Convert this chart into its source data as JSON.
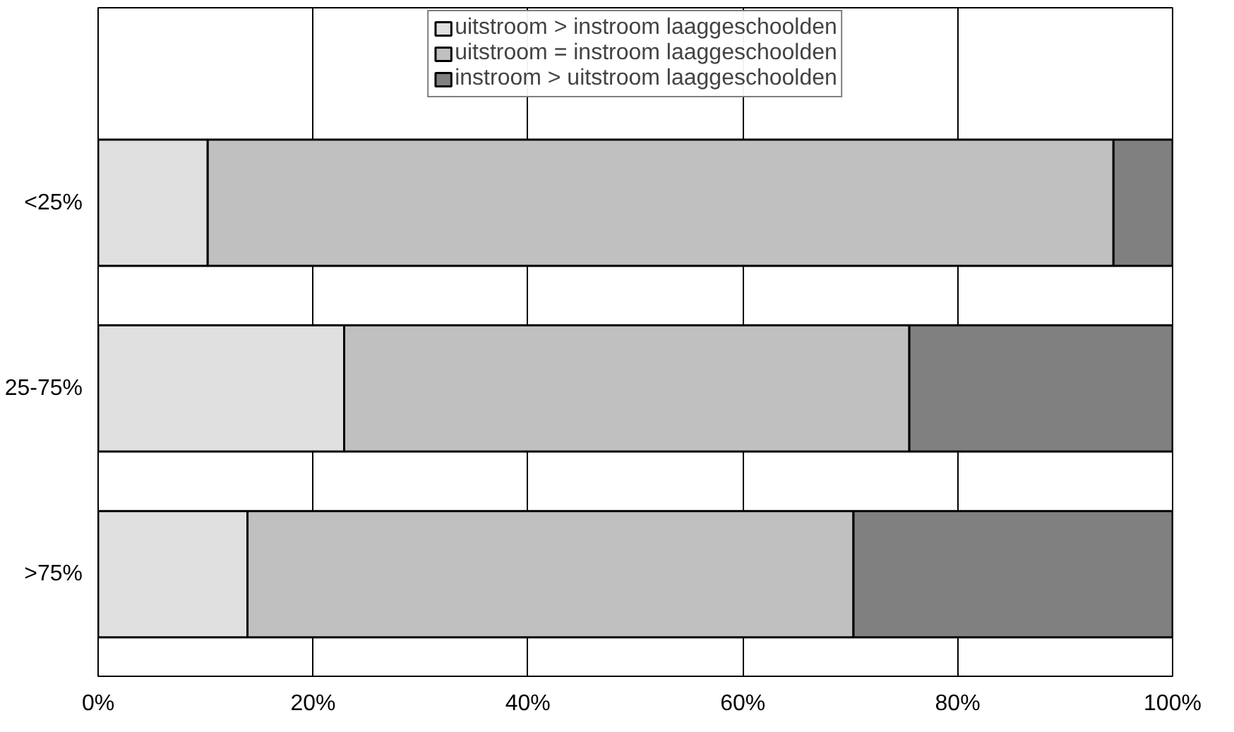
{
  "chart_data": {
    "type": "bar",
    "orientation": "horizontal",
    "stacked": true,
    "categories": [
      "<25%",
      "25-75%",
      ">75%"
    ],
    "series": [
      {
        "name": "uitstroom > instroom laaggeschoolden",
        "color": "#e0e0e0",
        "values": [
          10.2,
          22.9,
          13.9
        ]
      },
      {
        "name": "uitstroom = instroom laaggeschoolden",
        "color": "#c0c0c0",
        "values": [
          84.3,
          52.6,
          56.4
        ]
      },
      {
        "name": "instroom > uitstroom laaggeschoolden",
        "color": "#808080",
        "values": [
          5.5,
          24.5,
          29.7
        ]
      }
    ],
    "xlim": [
      0,
      100
    ],
    "xticks": [
      {
        "value": 0,
        "label": "0%"
      },
      {
        "value": 20,
        "label": "20%"
      },
      {
        "value": 40,
        "label": "40%"
      },
      {
        "value": 60,
        "label": "60%"
      },
      {
        "value": 80,
        "label": "80%"
      },
      {
        "value": 100,
        "label": "100%"
      }
    ],
    "grid": "x",
    "legend": "top"
  }
}
